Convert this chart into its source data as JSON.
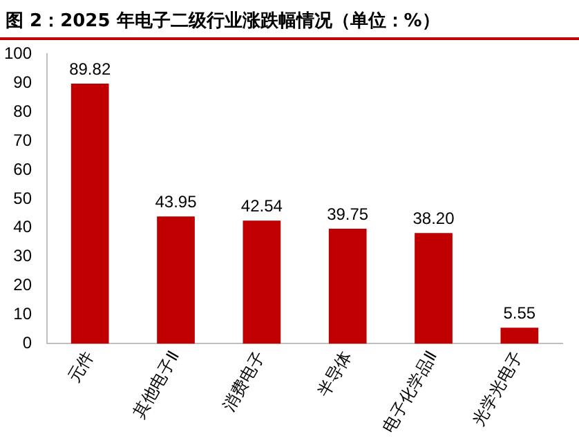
{
  "chart_data": {
    "type": "bar",
    "title": "图 2：2025 年电子二级行业涨跌幅情况（单位：%）",
    "categories": [
      "元件",
      "其他电子Ⅱ",
      "消费电子",
      "半导体",
      "电子化学品Ⅱ",
      "光学光电子"
    ],
    "values": [
      89.82,
      43.95,
      42.54,
      39.75,
      38.2,
      5.55
    ],
    "value_labels": [
      "89.82",
      "43.95",
      "42.54",
      "39.75",
      "38.20",
      "5.55"
    ],
    "color": "#c00000",
    "ylim": [
      0,
      100
    ],
    "yticks": [
      0,
      10,
      20,
      30,
      40,
      50,
      60,
      70,
      80,
      90,
      100
    ],
    "grid": false,
    "legend": false
  }
}
